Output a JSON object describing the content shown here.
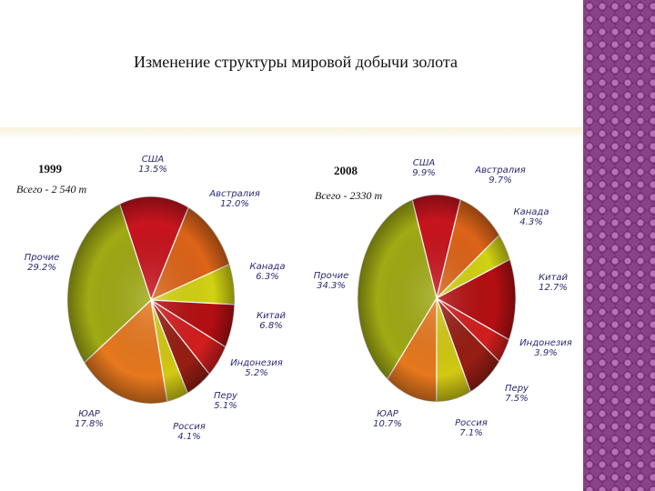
{
  "slide": {
    "title": "Изменение структуры мировой добычи золота"
  },
  "chart_data": [
    {
      "type": "pie",
      "year": "1999",
      "total": "Всего - 2 540 т",
      "slices": [
        {
          "name": "США",
          "value": 13.5,
          "label": "13.5%",
          "color": "#c8141e"
        },
        {
          "name": "Австралия",
          "value": 12.0,
          "label": "12.0%",
          "color": "#dc6418"
        },
        {
          "name": "Канада",
          "value": 6.3,
          "label": "6.3%",
          "color": "#d2d214"
        },
        {
          "name": "Китай",
          "value": 6.8,
          "label": "6.8%",
          "color": "#b40f12"
        },
        {
          "name": "Индонезия",
          "value": 5.2,
          "label": "5.2%",
          "color": "#d21e1e"
        },
        {
          "name": "Перу",
          "value": 5.1,
          "label": "5.1%",
          "color": "#961e14"
        },
        {
          "name": "Россия",
          "value": 4.1,
          "label": "4.1%",
          "color": "#d2c814"
        },
        {
          "name": "ЮАР",
          "value": 17.8,
          "label": "17.8%",
          "color": "#e6781e"
        },
        {
          "name": "Прочие",
          "value": 29.2,
          "label": "29.2%",
          "color": "#a0aa14"
        }
      ]
    },
    {
      "type": "pie",
      "year": "2008",
      "total": "Всего - 2330 т",
      "slices": [
        {
          "name": "США",
          "value": 9.9,
          "label": "9.9%",
          "color": "#c8141e"
        },
        {
          "name": "Австралия",
          "value": 9.7,
          "label": "9.7%",
          "color": "#dc6418"
        },
        {
          "name": "Канада",
          "value": 4.3,
          "label": "4.3%",
          "color": "#d2d214"
        },
        {
          "name": "Китай",
          "value": 12.7,
          "label": "12.7%",
          "color": "#b40f12"
        },
        {
          "name": "Индонезия",
          "value": 3.9,
          "label": "3.9%",
          "color": "#d21e1e"
        },
        {
          "name": "Перу",
          "value": 7.5,
          "label": "7.5%",
          "color": "#961e14"
        },
        {
          "name": "Россия",
          "value": 7.1,
          "label": "7.1%",
          "color": "#d2c814"
        },
        {
          "name": "ЮАР",
          "value": 10.7,
          "label": "10.7%",
          "color": "#e6781e"
        },
        {
          "name": "Прочие",
          "value": 34.3,
          "label": "34.3%",
          "color": "#a0aa14"
        }
      ]
    }
  ]
}
